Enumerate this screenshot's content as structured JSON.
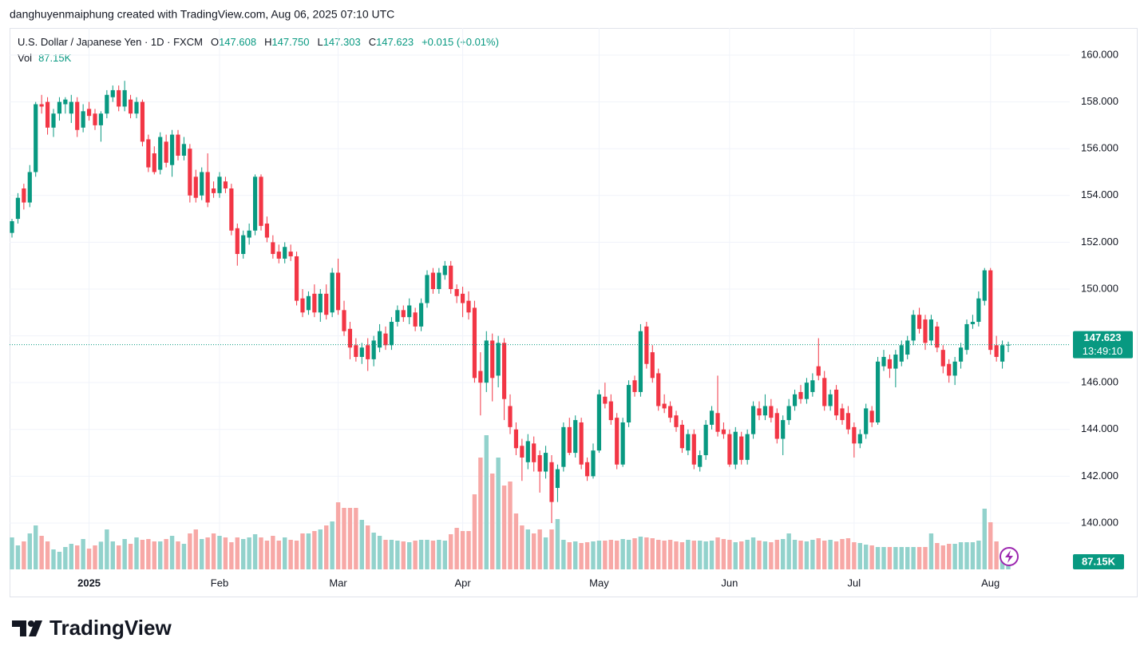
{
  "header": {
    "credit": "danghuyenmaiphung created with TradingView.com, Aug 06, 2025 07:10 UTC",
    "brand": "TradingView"
  },
  "chart_data": {
    "type": "candlestick",
    "legend": {
      "title": "U.S. Dollar / Japanese Yen · 1D · FXCM",
      "fields": [
        {
          "key": "O",
          "label": "147.608"
        },
        {
          "key": "H",
          "label": "147.750"
        },
        {
          "key": "L",
          "label": "147.303"
        },
        {
          "key": "C",
          "label": "147.623"
        }
      ],
      "change": "+0.015 (+0.01%)",
      "volume_title": "Vol",
      "volume_label": "87.15K"
    },
    "countdown": "13:49:10",
    "up_color": "#089981",
    "down_color": "#f23645",
    "volume_up_color": "#92d2cc",
    "volume_down_color": "#f7a8a6",
    "grid": true,
    "ylim": [
      138.02,
      161.16
    ],
    "yticks": [
      {
        "value": 140,
        "label": "140.000"
      },
      {
        "value": 142,
        "label": "142.000"
      },
      {
        "value": 144,
        "label": "144.000"
      },
      {
        "value": 146,
        "label": "146.000"
      },
      {
        "value": 148,
        "label": "148.000"
      },
      {
        "value": 150,
        "label": "150.000"
      },
      {
        "value": 152,
        "label": "152.000"
      },
      {
        "value": 154,
        "label": "154.000"
      },
      {
        "value": 156,
        "label": "156.000"
      },
      {
        "value": 158,
        "label": "158.000"
      },
      {
        "value": 160,
        "label": "160.000"
      }
    ],
    "categories": [
      null,
      null,
      null,
      null,
      null,
      null,
      null,
      null,
      null,
      null,
      null,
      null,
      null,
      "2025",
      null,
      null,
      null,
      null,
      null,
      null,
      null,
      null,
      null,
      null,
      null,
      null,
      null,
      null,
      null,
      null,
      null,
      null,
      null,
      null,
      null,
      "Feb",
      null,
      null,
      null,
      null,
      null,
      null,
      null,
      null,
      null,
      null,
      null,
      null,
      null,
      null,
      null,
      null,
      null,
      null,
      null,
      "Mar",
      null,
      null,
      null,
      null,
      null,
      null,
      null,
      null,
      null,
      null,
      null,
      null,
      null,
      null,
      null,
      null,
      null,
      null,
      null,
      null,
      "Apr",
      null,
      null,
      null,
      null,
      null,
      null,
      null,
      null,
      null,
      null,
      null,
      null,
      null,
      null,
      null,
      null,
      null,
      null,
      null,
      null,
      null,
      null,
      "May",
      null,
      null,
      null,
      null,
      null,
      null,
      null,
      null,
      null,
      null,
      null,
      null,
      null,
      null,
      null,
      null,
      null,
      null,
      null,
      null,
      null,
      "Jun",
      null,
      null,
      null,
      null,
      null,
      null,
      null,
      null,
      null,
      null,
      null,
      null,
      null,
      null,
      null,
      null,
      null,
      null,
      null,
      null,
      "Jul",
      null,
      null,
      null,
      null,
      null,
      null,
      null,
      null,
      null,
      null,
      null,
      null,
      null,
      null,
      null,
      null,
      null,
      null,
      null,
      null,
      null,
      null,
      "Aug",
      null,
      null,
      null
    ],
    "ohlc": [
      [
        152.4,
        153.0,
        152.2,
        152.9
      ],
      [
        153.0,
        154.1,
        152.8,
        153.9
      ],
      [
        154.3,
        154.5,
        153.4,
        153.7
      ],
      [
        153.7,
        155.3,
        153.5,
        155.0
      ],
      [
        155.0,
        158.0,
        154.8,
        157.9
      ],
      [
        157.9,
        158.3,
        157.5,
        157.8
      ],
      [
        158.0,
        158.2,
        156.6,
        156.9
      ],
      [
        156.9,
        157.7,
        156.5,
        157.5
      ],
      [
        157.5,
        158.2,
        157.2,
        158.0
      ],
      [
        157.9,
        158.2,
        157.5,
        158.1
      ],
      [
        157.5,
        158.3,
        157.1,
        158.0
      ],
      [
        158.0,
        158.2,
        156.5,
        156.8
      ],
      [
        156.9,
        157.9,
        156.7,
        157.6
      ],
      [
        157.7,
        158.0,
        157.2,
        157.4
      ],
      [
        157.5,
        157.7,
        156.8,
        157.0
      ],
      [
        157.0,
        157.6,
        156.3,
        157.5
      ],
      [
        157.5,
        158.5,
        157.3,
        158.3
      ],
      [
        158.2,
        158.7,
        158.0,
        158.5
      ],
      [
        158.5,
        158.7,
        157.6,
        157.8
      ],
      [
        157.8,
        158.9,
        157.6,
        158.5
      ],
      [
        158.1,
        158.3,
        157.3,
        157.5
      ],
      [
        157.5,
        158.2,
        157.3,
        158.0
      ],
      [
        158.0,
        158.1,
        156.1,
        156.3
      ],
      [
        156.4,
        156.6,
        155.0,
        155.2
      ],
      [
        155.8,
        156.1,
        154.9,
        155.0
      ],
      [
        155.1,
        156.7,
        154.9,
        156.5
      ],
      [
        156.3,
        156.6,
        155.2,
        155.4
      ],
      [
        155.3,
        156.8,
        154.8,
        156.6
      ],
      [
        156.6,
        156.8,
        155.5,
        155.7
      ],
      [
        155.7,
        156.5,
        155.5,
        156.2
      ],
      [
        156.0,
        156.2,
        153.7,
        154.0
      ],
      [
        154.8,
        155.1,
        153.7,
        153.9
      ],
      [
        154.0,
        155.2,
        153.8,
        155.0
      ],
      [
        155.0,
        155.8,
        153.5,
        153.7
      ],
      [
        154.3,
        154.6,
        153.9,
        154.1
      ],
      [
        154.1,
        155.0,
        153.9,
        154.8
      ],
      [
        154.6,
        154.8,
        154.1,
        154.3
      ],
      [
        154.3,
        154.5,
        152.3,
        152.5
      ],
      [
        152.6,
        152.8,
        151.0,
        151.5
      ],
      [
        151.5,
        152.5,
        151.3,
        152.3
      ],
      [
        152.2,
        152.8,
        151.9,
        152.5
      ],
      [
        152.5,
        154.9,
        152.3,
        154.8
      ],
      [
        154.8,
        154.9,
        152.5,
        152.7
      ],
      [
        152.8,
        153.1,
        152.0,
        152.2
      ],
      [
        152.0,
        152.3,
        151.3,
        151.5
      ],
      [
        151.6,
        151.9,
        151.1,
        151.3
      ],
      [
        151.3,
        152.0,
        151.1,
        151.8
      ],
      [
        151.6,
        151.9,
        151.2,
        151.4
      ],
      [
        151.4,
        151.6,
        149.3,
        149.5
      ],
      [
        149.6,
        150.0,
        148.8,
        149.0
      ],
      [
        149.1,
        149.9,
        148.9,
        149.7
      ],
      [
        149.8,
        150.2,
        148.8,
        149.0
      ],
      [
        149.0,
        150.0,
        148.6,
        149.8
      ],
      [
        149.8,
        150.2,
        148.7,
        148.9
      ],
      [
        149.0,
        150.9,
        148.8,
        150.7
      ],
      [
        150.7,
        151.3,
        148.9,
        149.1
      ],
      [
        149.1,
        149.5,
        148.0,
        148.2
      ],
      [
        148.3,
        148.6,
        147.0,
        147.5
      ],
      [
        147.6,
        147.9,
        146.9,
        147.1
      ],
      [
        147.1,
        147.7,
        146.8,
        147.5
      ],
      [
        147.6,
        147.9,
        146.5,
        147.0
      ],
      [
        147.0,
        148.0,
        146.7,
        147.8
      ],
      [
        147.5,
        148.5,
        147.3,
        148.2
      ],
      [
        148.1,
        148.4,
        147.4,
        147.6
      ],
      [
        147.6,
        148.8,
        147.4,
        148.6
      ],
      [
        148.6,
        149.3,
        148.4,
        149.1
      ],
      [
        149.1,
        149.3,
        148.6,
        148.8
      ],
      [
        148.8,
        149.6,
        148.5,
        149.3
      ],
      [
        149.0,
        149.2,
        148.2,
        148.4
      ],
      [
        148.4,
        149.6,
        148.2,
        149.4
      ],
      [
        149.4,
        150.8,
        149.2,
        150.6
      ],
      [
        150.7,
        150.9,
        149.8,
        150.0
      ],
      [
        150.0,
        150.9,
        149.8,
        150.7
      ],
      [
        150.6,
        151.2,
        150.4,
        151.0
      ],
      [
        151.0,
        151.2,
        149.8,
        150.0
      ],
      [
        150.0,
        150.2,
        149.4,
        149.7
      ],
      [
        149.8,
        150.1,
        148.8,
        149.4
      ],
      [
        149.5,
        149.9,
        148.7,
        149.0
      ],
      [
        149.2,
        149.5,
        146.0,
        146.2
      ],
      [
        146.5,
        147.3,
        144.6,
        146.0
      ],
      [
        146.0,
        148.2,
        145.6,
        147.8
      ],
      [
        147.8,
        148.1,
        145.2,
        146.2
      ],
      [
        146.3,
        148.0,
        145.8,
        147.7
      ],
      [
        147.7,
        147.9,
        144.4,
        145.3
      ],
      [
        145.0,
        145.5,
        143.8,
        144.1
      ],
      [
        144.0,
        144.3,
        142.9,
        143.2
      ],
      [
        143.3,
        143.6,
        141.8,
        142.8
      ],
      [
        142.6,
        143.8,
        142.3,
        143.5
      ],
      [
        143.4,
        143.7,
        142.2,
        142.6
      ],
      [
        142.9,
        143.1,
        141.3,
        142.2
      ],
      [
        142.2,
        143.3,
        141.9,
        143.0
      ],
      [
        142.6,
        142.9,
        140.0,
        140.9
      ],
      [
        141.5,
        142.5,
        140.9,
        142.3
      ],
      [
        142.4,
        144.3,
        142.2,
        144.1
      ],
      [
        144.1,
        144.5,
        142.9,
        143.0
      ],
      [
        143.0,
        144.6,
        142.8,
        144.4
      ],
      [
        144.3,
        144.5,
        142.3,
        142.5
      ],
      [
        142.6,
        142.8,
        141.8,
        142.0
      ],
      [
        142.0,
        143.4,
        141.9,
        143.1
      ],
      [
        143.1,
        145.7,
        143.0,
        145.5
      ],
      [
        145.4,
        146.0,
        144.9,
        145.1
      ],
      [
        145.2,
        145.5,
        144.2,
        144.4
      ],
      [
        144.5,
        144.7,
        142.3,
        142.5
      ],
      [
        142.5,
        144.5,
        142.4,
        144.3
      ],
      [
        144.3,
        146.1,
        144.1,
        145.9
      ],
      [
        146.1,
        146.3,
        145.4,
        145.6
      ],
      [
        145.6,
        148.5,
        145.4,
        148.2
      ],
      [
        148.4,
        148.6,
        146.6,
        146.8
      ],
      [
        147.3,
        147.6,
        146.0,
        146.2
      ],
      [
        146.4,
        146.6,
        144.8,
        145.0
      ],
      [
        145.1,
        145.5,
        144.7,
        144.9
      ],
      [
        145.0,
        145.2,
        144.3,
        144.5
      ],
      [
        144.6,
        144.8,
        143.9,
        144.1
      ],
      [
        144.2,
        144.4,
        143.0,
        143.2
      ],
      [
        143.1,
        144.0,
        142.9,
        143.8
      ],
      [
        143.8,
        144.0,
        142.3,
        142.5
      ],
      [
        142.4,
        143.1,
        142.2,
        142.9
      ],
      [
        142.9,
        144.4,
        142.7,
        144.2
      ],
      [
        144.2,
        145.0,
        144.0,
        144.8
      ],
      [
        144.7,
        146.3,
        143.7,
        143.9
      ],
      [
        144.0,
        144.3,
        143.6,
        143.8
      ],
      [
        143.8,
        144.0,
        142.4,
        142.5
      ],
      [
        142.5,
        144.1,
        142.3,
        143.9
      ],
      [
        143.7,
        143.9,
        142.5,
        142.7
      ],
      [
        142.7,
        144.0,
        142.5,
        143.8
      ],
      [
        143.8,
        145.2,
        143.6,
        145.0
      ],
      [
        144.9,
        145.2,
        144.4,
        144.6
      ],
      [
        144.6,
        145.5,
        144.4,
        145.0
      ],
      [
        145.0,
        145.3,
        144.3,
        144.5
      ],
      [
        144.7,
        144.9,
        143.4,
        143.6
      ],
      [
        143.6,
        144.6,
        142.9,
        144.4
      ],
      [
        144.4,
        145.3,
        144.2,
        145.0
      ],
      [
        145.0,
        145.7,
        144.8,
        145.5
      ],
      [
        145.6,
        145.9,
        145.1,
        145.3
      ],
      [
        145.3,
        146.2,
        145.1,
        146.0
      ],
      [
        145.6,
        146.4,
        145.4,
        146.1
      ],
      [
        146.7,
        147.9,
        146.1,
        146.3
      ],
      [
        146.2,
        146.5,
        144.8,
        145.0
      ],
      [
        145.0,
        145.7,
        144.8,
        145.5
      ],
      [
        145.7,
        145.9,
        144.4,
        144.6
      ],
      [
        144.9,
        145.1,
        144.2,
        144.4
      ],
      [
        144.7,
        145.0,
        143.8,
        144.0
      ],
      [
        144.1,
        144.3,
        142.8,
        143.4
      ],
      [
        143.4,
        144.0,
        143.2,
        143.8
      ],
      [
        143.8,
        145.1,
        143.6,
        144.9
      ],
      [
        144.8,
        145.0,
        144.1,
        144.3
      ],
      [
        144.3,
        147.1,
        144.2,
        146.9
      ],
      [
        146.7,
        147.4,
        146.5,
        147.1
      ],
      [
        147.0,
        147.2,
        146.2,
        146.6
      ],
      [
        146.6,
        147.4,
        145.8,
        147.2
      ],
      [
        146.9,
        147.8,
        146.7,
        147.6
      ],
      [
        147.2,
        148.0,
        147.0,
        147.8
      ],
      [
        147.8,
        149.1,
        147.6,
        148.9
      ],
      [
        148.9,
        149.2,
        148.1,
        148.3
      ],
      [
        148.7,
        148.9,
        147.4,
        147.7
      ],
      [
        147.8,
        148.9,
        147.6,
        148.7
      ],
      [
        148.4,
        148.6,
        147.3,
        147.5
      ],
      [
        147.4,
        147.6,
        146.4,
        146.7
      ],
      [
        146.8,
        147.0,
        146.0,
        146.3
      ],
      [
        146.3,
        147.1,
        145.9,
        146.9
      ],
      [
        146.9,
        147.7,
        146.6,
        147.5
      ],
      [
        147.4,
        148.7,
        147.2,
        148.5
      ],
      [
        148.5,
        148.9,
        148.3,
        148.6
      ],
      [
        148.6,
        149.9,
        148.4,
        149.6
      ],
      [
        149.5,
        150.9,
        149.3,
        150.8
      ],
      [
        150.8,
        150.9,
        147.2,
        147.4
      ],
      [
        147.6,
        148.0,
        146.9,
        147.1
      ],
      [
        146.9,
        147.8,
        146.6,
        147.6
      ],
      [
        147.608,
        147.75,
        147.303,
        147.623
      ]
    ],
    "volume": [
      600,
      450,
      525,
      675,
      825,
      630,
      525,
      375,
      330,
      420,
      480,
      450,
      570,
      390,
      450,
      520,
      750,
      525,
      450,
      570,
      480,
      600,
      555,
      570,
      525,
      525,
      570,
      630,
      525,
      480,
      675,
      750,
      570,
      600,
      675,
      630,
      600,
      510,
      600,
      570,
      600,
      660,
      600,
      540,
      630,
      540,
      600,
      555,
      540,
      675,
      675,
      720,
      750,
      825,
      900,
      1260,
      1155,
      1155,
      1155,
      930,
      825,
      690,
      630,
      555,
      555,
      540,
      525,
      510,
      540,
      555,
      555,
      540,
      555,
      540,
      660,
      780,
      720,
      720,
      1410,
      2100,
      2520,
      1800,
      2100,
      1575,
      1650,
      1050,
      825,
      750,
      675,
      750,
      600,
      750,
      945,
      555,
      510,
      525,
      495,
      510,
      525,
      540,
      540,
      555,
      540,
      570,
      555,
      585,
      615,
      600,
      585,
      555,
      540,
      555,
      525,
      510,
      555,
      540,
      540,
      525,
      540,
      600,
      570,
      555,
      510,
      525,
      555,
      600,
      540,
      525,
      510,
      555,
      570,
      675,
      555,
      540,
      525,
      555,
      585,
      540,
      555,
      525,
      570,
      585,
      510,
      495,
      465,
      450,
      420,
      420,
      420,
      420,
      420,
      420,
      420,
      420,
      420,
      675,
      495,
      450,
      480,
      480,
      510,
      510,
      510,
      540,
      1140,
      885,
      525,
      300,
      87.15
    ]
  }
}
